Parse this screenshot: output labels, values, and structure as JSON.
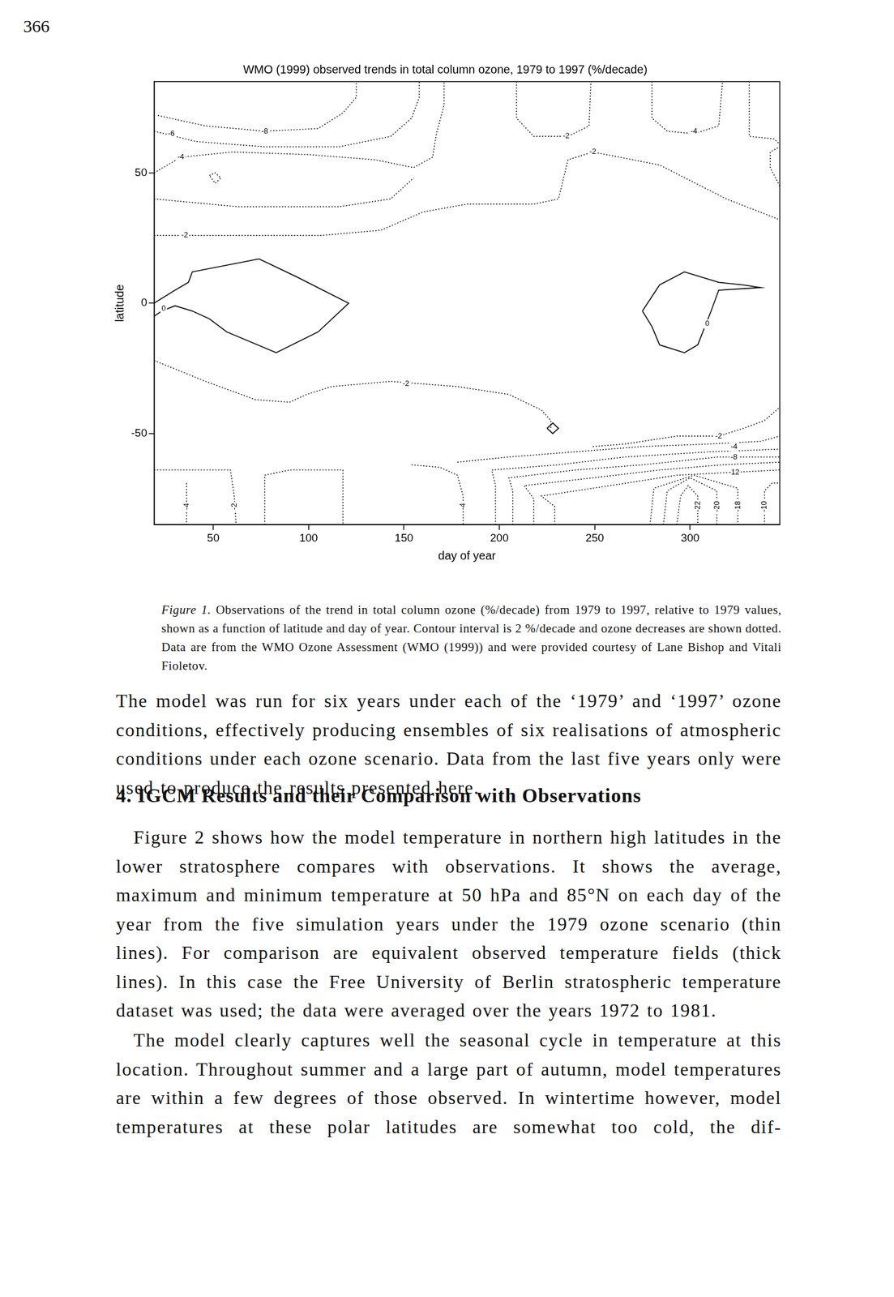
{
  "page_number": "366",
  "chart_data": {
    "type": "contour",
    "title": "WMO (1999) observed trends in total column ozone, 1979 to 1997 (%/decade)",
    "x_label": "day of year",
    "y_label": "latitude",
    "xlim": [
      19,
      347
    ],
    "ylim": [
      -85,
      85
    ],
    "xticks": [
      50,
      100,
      150,
      200,
      250,
      300
    ],
    "yticks": [
      -50,
      0,
      50
    ],
    "grid": false,
    "contours": [
      {
        "line_style": "dotted",
        "points": [
          [
            21,
            72
          ],
          [
            46,
            68
          ],
          [
            77,
            66
          ],
          [
            105,
            67
          ],
          [
            118,
            73
          ],
          [
            125,
            79
          ],
          [
            125,
            85
          ]
        ]
      },
      {
        "line_style": "dotted",
        "points": [
          [
            19,
            66
          ],
          [
            41,
            62
          ],
          [
            77,
            60
          ],
          [
            116,
            60
          ],
          [
            143,
            64
          ],
          [
            154,
            71
          ],
          [
            158,
            79
          ],
          [
            158,
            85
          ]
        ]
      },
      {
        "line_style": "dotted",
        "points": [
          [
            19,
            50
          ],
          [
            26,
            53
          ],
          [
            33,
            56
          ],
          [
            60,
            58
          ],
          [
            100,
            57
          ],
          [
            135,
            55
          ],
          [
            155,
            52
          ],
          [
            165,
            56
          ],
          [
            167,
            65
          ],
          [
            171,
            76
          ],
          [
            171,
            85
          ]
        ]
      },
      {
        "line_style": "dotted",
        "points": [
          [
            19,
            40
          ],
          [
            63,
            37
          ],
          [
            116,
            37
          ],
          [
            143,
            40
          ],
          [
            155,
            48
          ]
        ]
      },
      {
        "line_style": "dotted",
        "points": [
          [
            19,
            26
          ],
          [
            63,
            26
          ],
          [
            107,
            26
          ],
          [
            138,
            28
          ],
          [
            160,
            35
          ],
          [
            183,
            38
          ],
          [
            218,
            38
          ],
          [
            231,
            40
          ],
          [
            236,
            55
          ],
          [
            249,
            58
          ],
          [
            284,
            53
          ],
          [
            319,
            40
          ],
          [
            347,
            32
          ]
        ]
      },
      {
        "line_style": "dotted",
        "points": [
          [
            209,
            85
          ],
          [
            209,
            71
          ],
          [
            218,
            64
          ],
          [
            236,
            64
          ],
          [
            247,
            68
          ],
          [
            248,
            85
          ]
        ]
      },
      {
        "line_style": "dotted",
        "points": [
          [
            280,
            85
          ],
          [
            280,
            71
          ],
          [
            288,
            66
          ],
          [
            302,
            65
          ],
          [
            315,
            68
          ],
          [
            317,
            85
          ]
        ]
      },
      {
        "line_style": "dotted",
        "points": [
          [
            331,
            85
          ],
          [
            331,
            64
          ],
          [
            344,
            63
          ],
          [
            347,
            61
          ]
        ]
      },
      {
        "line_style": "dotted",
        "points": [
          [
            347,
            45
          ],
          [
            342,
            52
          ],
          [
            342,
            58
          ],
          [
            347,
            60
          ]
        ]
      },
      {
        "line_style": "dotted",
        "points": [
          [
            48,
            49
          ],
          [
            51,
            50
          ],
          [
            54,
            48
          ],
          [
            51,
            46
          ],
          [
            48,
            49
          ]
        ]
      },
      {
        "line_style": "solid",
        "points": [
          [
            19,
            0
          ],
          [
            30,
            5
          ],
          [
            37,
            8
          ],
          [
            39,
            12
          ],
          [
            74,
            17
          ],
          [
            94,
            10
          ],
          [
            121,
            0
          ],
          [
            105,
            -11
          ],
          [
            83,
            -19
          ],
          [
            57,
            -11
          ],
          [
            48,
            -6
          ],
          [
            39,
            -3
          ],
          [
            30,
            -1
          ],
          [
            23,
            -3
          ],
          [
            19,
            -5
          ]
        ]
      },
      {
        "line_style": "solid",
        "points": [
          [
            275,
            -3
          ],
          [
            284,
            7
          ],
          [
            297,
            12
          ],
          [
            315,
            8
          ],
          [
            328,
            7
          ],
          [
            337,
            6
          ],
          [
            315,
            5
          ],
          [
            311,
            -3
          ],
          [
            304,
            -16
          ],
          [
            297,
            -19
          ],
          [
            284,
            -16
          ],
          [
            280,
            -9
          ],
          [
            275,
            -3
          ]
        ]
      },
      {
        "line_style": "dotted",
        "points": [
          [
            19,
            -22
          ],
          [
            46,
            -30
          ],
          [
            72,
            -37
          ],
          [
            90,
            -38
          ],
          [
            99,
            -35
          ],
          [
            112,
            -32
          ],
          [
            143,
            -30
          ],
          [
            178,
            -32
          ],
          [
            205,
            -35
          ],
          [
            222,
            -41
          ],
          [
            227,
            -45
          ],
          [
            227,
            -48
          ]
        ]
      },
      {
        "line_style": "dotted",
        "points": [
          [
            249,
            -55
          ],
          [
            266,
            -54
          ],
          [
            293,
            -51
          ],
          [
            315,
            -51
          ],
          [
            328,
            -48
          ],
          [
            339,
            -45
          ],
          [
            347,
            -40
          ]
        ]
      },
      {
        "line_style": "solid",
        "points": [
          [
            225,
            -48
          ],
          [
            228,
            -46
          ],
          [
            231,
            -48
          ],
          [
            228,
            -50
          ],
          [
            225,
            -48
          ]
        ]
      },
      {
        "line_style": "dotted",
        "points": [
          [
            178,
            -61
          ],
          [
            205,
            -59
          ],
          [
            240,
            -57
          ],
          [
            275,
            -55
          ],
          [
            311,
            -54
          ],
          [
            337,
            -53
          ],
          [
            347,
            -51
          ]
        ]
      },
      {
        "line_style": "dotted",
        "points": [
          [
            198,
            -85
          ],
          [
            198,
            -70
          ],
          [
            196,
            -64
          ],
          [
            231,
            -62
          ],
          [
            266,
            -59
          ],
          [
            311,
            -57
          ],
          [
            347,
            -56
          ]
        ]
      },
      {
        "line_style": "dotted",
        "points": [
          [
            207,
            -85
          ],
          [
            207,
            -72
          ],
          [
            205,
            -67
          ],
          [
            240,
            -64
          ],
          [
            275,
            -62
          ],
          [
            315,
            -59
          ],
          [
            347,
            -59
          ]
        ]
      },
      {
        "line_style": "dotted",
        "points": [
          [
            218,
            -85
          ],
          [
            218,
            -75
          ],
          [
            213,
            -70
          ],
          [
            249,
            -67
          ],
          [
            284,
            -64
          ],
          [
            317,
            -62
          ],
          [
            347,
            -61
          ]
        ]
      },
      {
        "line_style": "dotted",
        "points": [
          [
            229,
            -85
          ],
          [
            229,
            -78
          ],
          [
            222,
            -74
          ],
          [
            258,
            -70
          ],
          [
            293,
            -66
          ],
          [
            319,
            -65
          ],
          [
            347,
            -64
          ]
        ]
      },
      {
        "line_style": "dotted",
        "points": [
          [
            293,
            -85
          ],
          [
            295,
            -74
          ],
          [
            299,
            -70
          ],
          [
            304,
            -74
          ],
          [
            304,
            -85
          ]
        ]
      },
      {
        "line_style": "dotted",
        "points": [
          [
            286,
            -85
          ],
          [
            288,
            -72
          ],
          [
            300,
            -67
          ],
          [
            314,
            -72
          ],
          [
            314,
            -85
          ]
        ]
      },
      {
        "line_style": "dotted",
        "points": [
          [
            279,
            -85
          ],
          [
            281,
            -71
          ],
          [
            302,
            -66
          ],
          [
            325,
            -71
          ],
          [
            325,
            -85
          ]
        ]
      },
      {
        "line_style": "dotted",
        "points": [
          [
            339,
            -85
          ],
          [
            339,
            -72
          ],
          [
            343,
            -69
          ],
          [
            347,
            -69
          ]
        ]
      },
      {
        "line_style": "dotted",
        "points": [
          [
            154,
            -62
          ],
          [
            169,
            -63
          ],
          [
            178,
            -66
          ],
          [
            181,
            -74
          ],
          [
            181,
            -85
          ]
        ]
      },
      {
        "line_style": "dotted",
        "points": [
          [
            19,
            -64
          ],
          [
            59,
            -64
          ],
          [
            61,
            -74
          ],
          [
            62,
            -85
          ]
        ]
      },
      {
        "line_style": "dotted",
        "points": [
          [
            36,
            -69
          ],
          [
            36,
            -85
          ]
        ]
      },
      {
        "line_style": "dotted",
        "points": [
          [
            77,
            -85
          ],
          [
            77,
            -66
          ],
          [
            90,
            -64
          ],
          [
            118,
            -64
          ],
          [
            118,
            -85
          ]
        ]
      }
    ],
    "contour_labels": [
      {
        "text": "-6",
        "x": 28,
        "y": 65
      },
      {
        "text": "-8",
        "x": 77,
        "y": 66
      },
      {
        "text": "-4",
        "x": 33,
        "y": 56
      },
      {
        "text": "-2",
        "x": 35,
        "y": 26
      },
      {
        "text": "-2",
        "x": 235,
        "y": 64
      },
      {
        "text": "-4",
        "x": 302,
        "y": 66
      },
      {
        "text": "-2",
        "x": 249,
        "y": 58
      },
      {
        "text": "0",
        "x": 24,
        "y": -2
      },
      {
        "text": "0",
        "x": 309,
        "y": -8
      },
      {
        "text": "-2",
        "x": 151,
        "y": -31
      },
      {
        "text": "-2",
        "x": 315,
        "y": -51
      },
      {
        "text": "-4",
        "x": 323,
        "y": -55
      },
      {
        "text": "-8",
        "x": 323,
        "y": -59
      },
      {
        "text": "-12",
        "x": 323,
        "y": -65
      },
      {
        "text": "-4",
        "x": 36,
        "y": -78
      },
      {
        "text": "-2",
        "x": 61,
        "y": -78
      },
      {
        "text": "-4",
        "x": 181,
        "y": -78
      },
      {
        "text": "-22",
        "x": 304,
        "y": -78
      },
      {
        "text": "-20",
        "x": 314,
        "y": -78
      },
      {
        "text": "-18",
        "x": 325,
        "y": -78
      },
      {
        "text": "-10",
        "x": 339,
        "y": -78
      }
    ]
  },
  "caption": {
    "label": "Figure 1.",
    "text": "Observations of the trend in total column ozone (%/decade) from 1979 to 1997, relative to 1979 values, shown as a function of latitude and day of year. Contour interval is 2 %/decade and ozone decreases are shown dotted. Data are from the WMO Ozone Assessment (WMO (1999)) and were provided courtesy of Lane Bishop and Vitali Fioletov."
  },
  "paragraph_1": "The model was run for six years under each of the ‘1979’ and ‘1997’ ozone conditions, effectively producing ensembles of six realisations of atmospheric conditions under each ozone scenario. Data from the last five years only were used to produce the results presented here.",
  "heading": "4. IGCM Results and their Comparison with Observations",
  "paragraph_2": "Figure 2 shows how the model temperature in northern high latitudes in the lower stratosphere compares with observations. It shows the average, maximum and minimum temperature at 50 hPa and 85°N on each day of the year from the five simulation years under the 1979 ozone scenario (thin lines). For comparison are equivalent observed temperature fields (thick lines). In this case the Free University of Berlin stratospheric temperature dataset was used; the data were averaged over the years 1972 to 1981.",
  "paragraph_3": "The model clearly captures well the seasonal cycle in temperature at this location. Throughout summer and a large part of autumn, model temperatures are within a few degrees of those observed. In wintertime however, model temperatures at these polar latitudes are somewhat too cold, the dif-"
}
